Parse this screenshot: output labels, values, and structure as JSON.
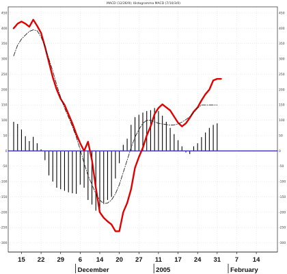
{
  "chart_data": {
    "type": "line",
    "title": "MACD (12/26/9); Histogramma MACD (7/10/3/0)",
    "y_ticks": [
      450,
      400,
      350,
      300,
      250,
      200,
      150,
      100,
      50,
      0,
      -50,
      -100,
      -150,
      -200,
      -250,
      -300
    ],
    "ylim": [
      -330,
      470
    ],
    "x_day_labels": [
      {
        "x": 2,
        "label": "15"
      },
      {
        "x": 7,
        "label": "22"
      },
      {
        "x": 12,
        "label": "29"
      },
      {
        "x": 17,
        "label": "6"
      },
      {
        "x": 22,
        "label": "14"
      },
      {
        "x": 27,
        "label": "20"
      },
      {
        "x": 32,
        "label": "27"
      },
      {
        "x": 37,
        "label": "11"
      },
      {
        "x": 42,
        "label": "17"
      },
      {
        "x": 47,
        "label": "24"
      },
      {
        "x": 52,
        "label": "31"
      },
      {
        "x": 57,
        "label": "7"
      },
      {
        "x": 62,
        "label": "14"
      }
    ],
    "x_month_labels": [
      {
        "x": 16,
        "label": "December"
      },
      {
        "x": 36,
        "label": "2005"
      },
      {
        "x": 55,
        "label": "February"
      }
    ],
    "xlim": [
      0,
      66
    ],
    "series": [
      {
        "color": "#e00000",
        "style": "solid",
        "x": [
          0,
          1,
          2,
          3,
          4,
          5,
          6,
          7,
          8,
          9,
          10,
          11,
          12,
          13,
          14,
          15,
          16,
          17,
          18,
          19,
          20,
          21,
          22,
          23,
          24,
          25,
          26,
          27,
          28,
          29,
          30,
          31,
          32,
          33,
          34,
          35,
          36,
          37,
          38,
          39,
          40,
          41,
          42,
          43,
          44,
          45,
          46,
          47,
          48,
          49,
          50,
          51,
          52,
          53
        ],
        "y": [
          400,
          415,
          422,
          415,
          405,
          428,
          408,
          385,
          340,
          290,
          240,
          200,
          170,
          150,
          120,
          90,
          55,
          25,
          0,
          30,
          -30,
          -120,
          -200,
          -218,
          -230,
          -240,
          -262,
          -262,
          -200,
          -170,
          -125,
          -55,
          -20,
          10,
          50,
          80,
          120,
          140,
          152,
          142,
          132,
          112,
          92,
          80,
          90,
          108,
          128,
          142,
          165,
          185,
          200,
          230,
          235,
          235
        ],
        "x_end": 53
      },
      {
        "color": "#222222",
        "style": "dashed",
        "x": [
          0,
          1,
          2,
          3,
          4,
          5,
          6,
          7,
          8,
          9,
          10,
          11,
          12,
          13,
          14,
          15,
          16,
          17,
          18,
          19,
          20,
          21,
          22,
          23,
          24,
          25,
          26,
          27,
          28,
          29,
          30,
          31,
          32,
          33,
          34,
          35,
          36,
          37,
          38,
          39,
          40,
          41,
          42,
          43,
          44,
          45,
          46,
          47,
          48,
          49,
          50,
          51,
          52
        ],
        "y": [
          310,
          345,
          365,
          378,
          390,
          395,
          392,
          372,
          340,
          300,
          260,
          215,
          175,
          140,
          110,
          80,
          45,
          5,
          -40,
          -80,
          -110,
          -140,
          -160,
          -172,
          -170,
          -160,
          -140,
          -110,
          -70,
          -30,
          10,
          45,
          70,
          90,
          100,
          100,
          95,
          90,
          88,
          86,
          84,
          85,
          88,
          94,
          102,
          112,
          125,
          140,
          150,
          150,
          150,
          150,
          150
        ]
      }
    ],
    "histogram": {
      "color": "#000000",
      "x": [
        0,
        1,
        2,
        3,
        4,
        5,
        6,
        7,
        8,
        9,
        10,
        11,
        12,
        13,
        14,
        15,
        16,
        17,
        18,
        19,
        20,
        21,
        22,
        23,
        24,
        25,
        26,
        27,
        28,
        29,
        30,
        31,
        32,
        33,
        34,
        35,
        36,
        37,
        38,
        39,
        40,
        41,
        42,
        43,
        44,
        45,
        46,
        47,
        48,
        49,
        50,
        51,
        52
      ],
      "values": [
        95,
        88,
        70,
        48,
        32,
        46,
        25,
        5,
        -30,
        -80,
        -100,
        -120,
        -125,
        -130,
        -135,
        -138,
        -140,
        -110,
        -120,
        -160,
        -175,
        -195,
        -190,
        -170,
        -160,
        -150,
        -90,
        -40,
        20,
        40,
        85,
        110,
        118,
        125,
        130,
        133,
        140,
        130,
        115,
        95,
        75,
        55,
        35,
        15,
        -5,
        -10,
        15,
        25,
        45,
        60,
        75,
        85,
        90
      ]
    },
    "zero_line_color": "#3333cc",
    "grid": true,
    "legend": "none"
  }
}
